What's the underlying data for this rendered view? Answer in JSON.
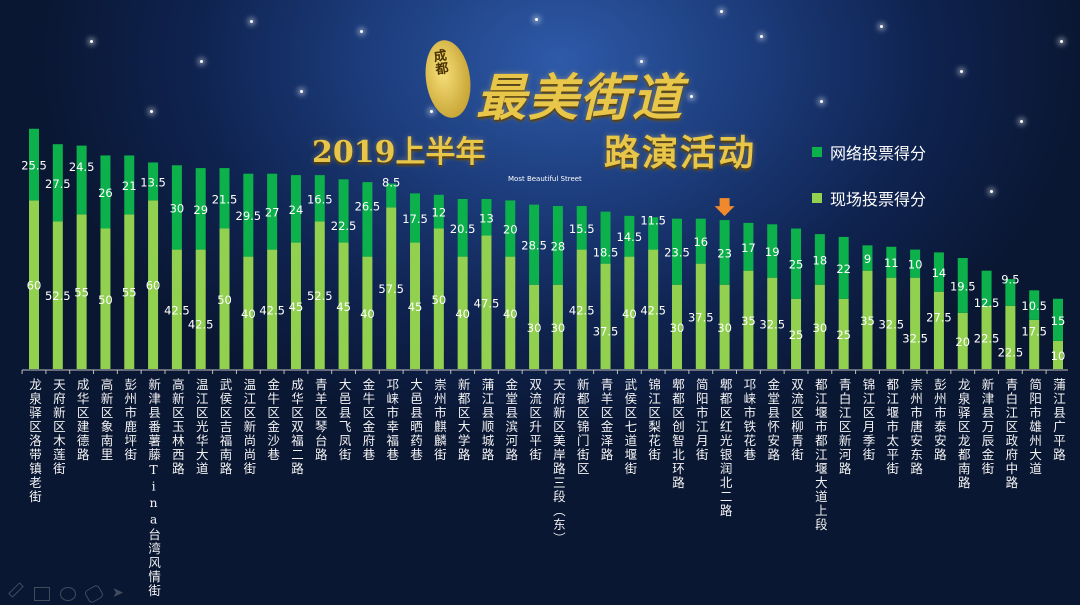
{
  "title": {
    "logo_text": "成都",
    "main": "最美街道",
    "year_prefix": "2019上半年",
    "subtitle": "路演活动",
    "english": "Most Beautiful Street"
  },
  "colors": {
    "online": "#0cb14b",
    "onsite": "#92d050",
    "highlight_arrow": "#f0892c"
  },
  "highlight_icon": "arrow-down-icon",
  "chart_data": {
    "type": "bar",
    "stacked": true,
    "legend_position": "right",
    "grid": false,
    "categories": [
      "龙泉驿区洛带镇老街",
      "天府新区木莲街",
      "成华区建德路",
      "高新区象南里",
      "彭州市鹿坪街",
      "新津县番薯藤Tina台湾风情街",
      "高新区玉林西路",
      "温江区光华大道",
      "武侯区吉福南路",
      "温江区新尚尚街",
      "金牛区金沙巷",
      "成华区双福二路",
      "青羊区琴台路",
      "大邑县飞凤街",
      "金牛区金府巷",
      "邛崃市幸福巷",
      "大邑县晒药巷",
      "崇州市麒麟街",
      "新都区大学路",
      "蒲江县顺城路",
      "金堂县滨河路",
      "双流区升平街",
      "天府新区美岸路三段（东）",
      "新都区锦门街区",
      "青羊区金泽路",
      "武侯区七道堰街",
      "锦江区梨花街",
      "郫都区创智北环路",
      "简阳市江月街",
      "郫都区红光银润北二路",
      "邛崃市铁花巷",
      "金堂县怀安路",
      "双流区柳青街",
      "都江堰市都江堰大道上段",
      "青白江区新河路",
      "锦江区月季街",
      "都江堰市太平街",
      "崇州市唐安东路",
      "彭州市泰安路",
      "龙泉驿区龙都南路",
      "新津县万辰金街",
      "青白江区政府中路",
      "简阳市雄州大道",
      "蒲江县广平路"
    ],
    "highlighted_category": "郫都区红光银润北二路",
    "series": [
      {
        "name": "现场投票得分",
        "values": [
          60,
          52.5,
          55,
          50,
          55,
          60,
          42.5,
          42.5,
          50,
          40,
          42.5,
          45,
          52.5,
          45,
          40,
          57.5,
          45,
          50,
          40,
          47.5,
          40,
          30,
          30,
          42.5,
          37.5,
          40,
          42.5,
          30,
          37.5,
          30,
          35,
          32.5,
          25,
          30,
          25,
          35,
          32.5,
          32.5,
          27.5,
          20,
          22.5,
          22.5,
          17.5,
          10
        ]
      },
      {
        "name": "网络投票得分",
        "values": [
          25.5,
          27.5,
          24.5,
          26,
          21,
          13.5,
          30,
          29,
          21.5,
          29.5,
          27,
          24,
          16.5,
          22.5,
          26.5,
          8.5,
          17.5,
          12,
          20.5,
          13,
          20,
          28.5,
          28,
          15.5,
          18.5,
          14.5,
          11.5,
          23.5,
          16,
          23,
          17,
          19,
          25,
          18,
          22,
          9,
          11,
          10,
          14,
          19.5,
          12.5,
          9.5,
          10.5,
          15
        ]
      }
    ],
    "legend": [
      "网络投票得分",
      "现场投票得分"
    ]
  }
}
